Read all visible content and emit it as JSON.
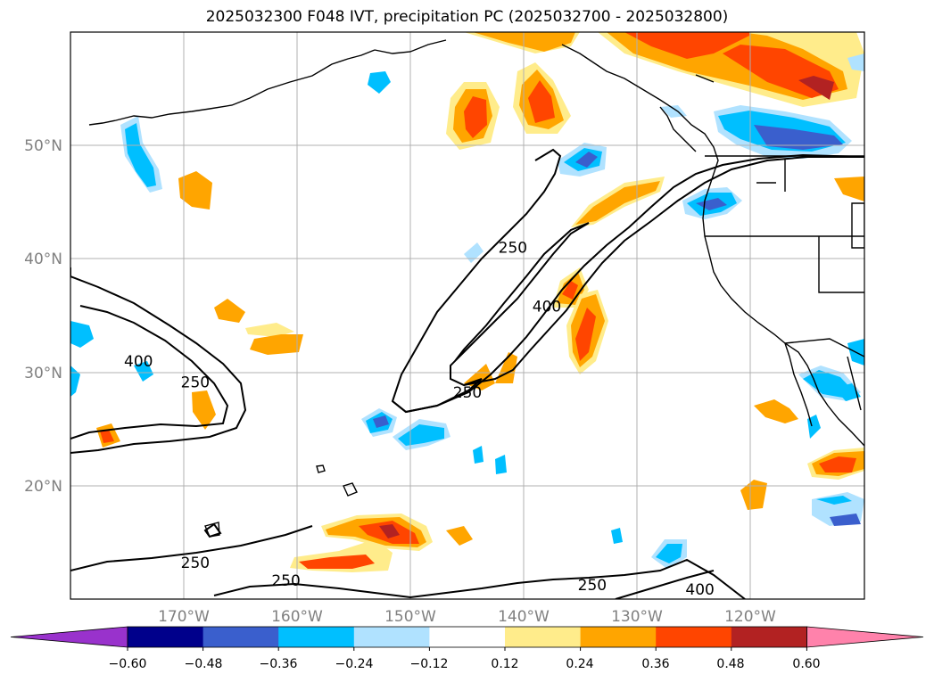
{
  "title": "2025032300 F048 IVT, precipitation PC (2025032700 - 2025032800)",
  "map": {
    "lat_labels": [
      "50°N",
      "40°N",
      "30°N",
      "20°N"
    ],
    "lon_labels": [
      "170°W",
      "160°W",
      "150°W",
      "140°W",
      "130°W",
      "120°W"
    ],
    "extent": {
      "lon_min": -180,
      "lon_max": -110,
      "lat_min": 10,
      "lat_max": 60
    },
    "ivt_contour_levels": [
      250,
      400
    ],
    "contour_labels": [
      {
        "text": "250",
        "lon": -141,
        "lat": 45
      },
      {
        "text": "400",
        "lon": -138,
        "lat": 40
      },
      {
        "text": "250",
        "lon": -145,
        "lat": 32
      },
      {
        "text": "400",
        "lon": -174,
        "lat": 35
      },
      {
        "text": "250",
        "lon": -169,
        "lat": 33
      },
      {
        "text": "250",
        "lon": -169,
        "lat": 14
      },
      {
        "text": "250",
        "lon": -161,
        "lat": 12
      },
      {
        "text": "250",
        "lon": -134,
        "lat": 11.5
      },
      {
        "text": "400",
        "lon": -124.5,
        "lat": 11
      }
    ]
  },
  "colorbar": {
    "tick_labels": [
      "−0.60",
      "−0.48",
      "−0.36",
      "−0.24",
      "−0.12",
      "0.12",
      "0.24",
      "0.36",
      "0.48",
      "0.60"
    ],
    "bin_colors": [
      "#9932cc",
      "#00008b",
      "#3a5fcd",
      "#00bfff",
      "#b0e2ff",
      "#ffffff",
      "#ffec8b",
      "#ffa500",
      "#ff4500",
      "#b22222",
      "#ff82ab"
    ]
  }
}
